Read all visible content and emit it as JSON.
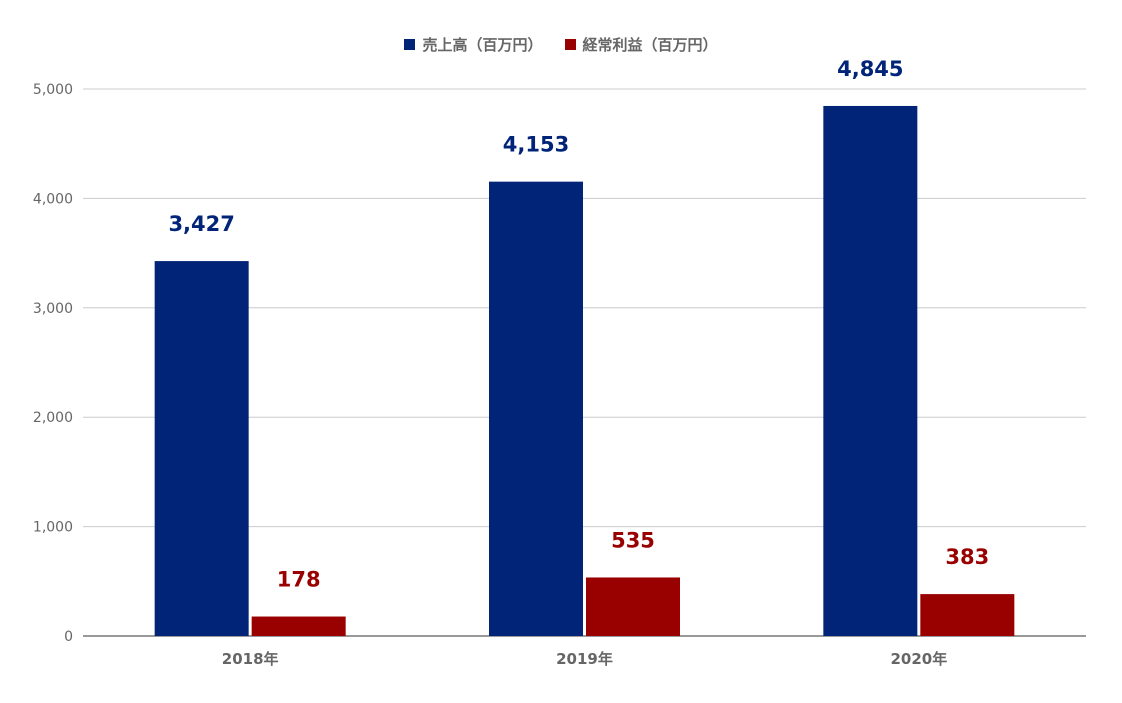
{
  "chart_data": {
    "type": "bar",
    "title": "",
    "xlabel": "",
    "ylabel": "",
    "categories": [
      "2018年",
      "2019年",
      "2020年"
    ],
    "series": [
      {
        "name": "売上高（百万円）",
        "values": [
          3427,
          4153,
          4845
        ],
        "labels": [
          "3,427",
          "4,153",
          "4,845"
        ],
        "color": "#012479"
      },
      {
        "name": "経常利益（百万円）",
        "values": [
          178,
          535,
          383
        ],
        "labels": [
          "178",
          "535",
          "383"
        ],
        "color": "#990000"
      }
    ],
    "ylim": [
      0,
      5000
    ],
    "yticks": [
      0,
      1000,
      2000,
      3000,
      4000,
      5000
    ],
    "ytick_labels": [
      "0",
      "1,000",
      "2,000",
      "3,000",
      "4,000",
      "5,000"
    ],
    "grid": true,
    "legend": "top-center"
  }
}
